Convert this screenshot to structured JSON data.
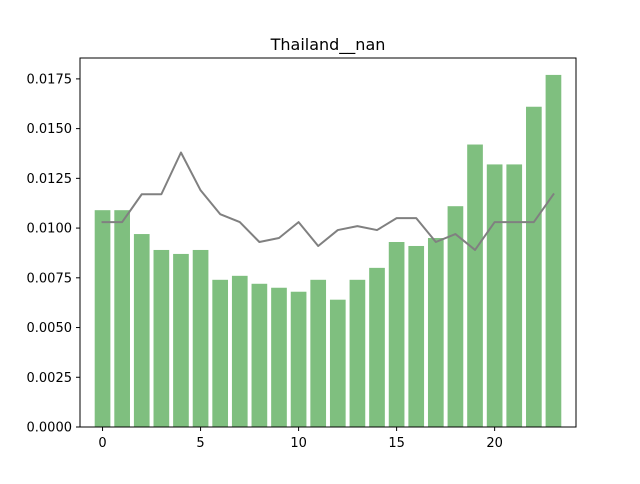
{
  "chart_data": {
    "type": "bar",
    "title": "Thailand__nan",
    "xlabel": "",
    "ylabel": "",
    "x": [
      0,
      1,
      2,
      3,
      4,
      5,
      6,
      7,
      8,
      9,
      10,
      11,
      12,
      13,
      14,
      15,
      16,
      17,
      18,
      19,
      20,
      21,
      22,
      23
    ],
    "xlim": [
      -1.15,
      24.15
    ],
    "ylim": [
      0,
      0.01855
    ],
    "x_ticks": [
      0,
      5,
      10,
      15,
      20
    ],
    "x_tick_labels": [
      "0",
      "5",
      "10",
      "15",
      "20"
    ],
    "y_ticks": [
      0,
      0.0025,
      0.005,
      0.0075,
      0.01,
      0.0125,
      0.015,
      0.0175
    ],
    "y_tick_labels": [
      "0.0000",
      "0.0025",
      "0.0050",
      "0.0075",
      "0.0100",
      "0.0125",
      "0.0150",
      "0.0175"
    ],
    "grid": false,
    "series": [
      {
        "type": "bar",
        "color": "#7fbf7f",
        "values": [
          0.0109,
          0.0109,
          0.0097,
          0.0089,
          0.0087,
          0.0089,
          0.0074,
          0.0076,
          0.0072,
          0.007,
          0.0068,
          0.0074,
          0.0064,
          0.0074,
          0.008,
          0.0093,
          0.0091,
          0.0095,
          0.0111,
          0.0142,
          0.0132,
          0.0132,
          0.0161,
          0.0177
        ]
      },
      {
        "type": "line",
        "color": "#808080",
        "values": [
          0.0103,
          0.0103,
          0.0117,
          0.0117,
          0.0138,
          0.0119,
          0.0107,
          0.0103,
          0.0093,
          0.0095,
          0.0103,
          0.0091,
          0.0099,
          0.0101,
          0.0099,
          0.0105,
          0.0105,
          0.0093,
          0.0097,
          0.0089,
          0.0103,
          0.0103,
          0.0103,
          0.0117
        ]
      }
    ]
  }
}
